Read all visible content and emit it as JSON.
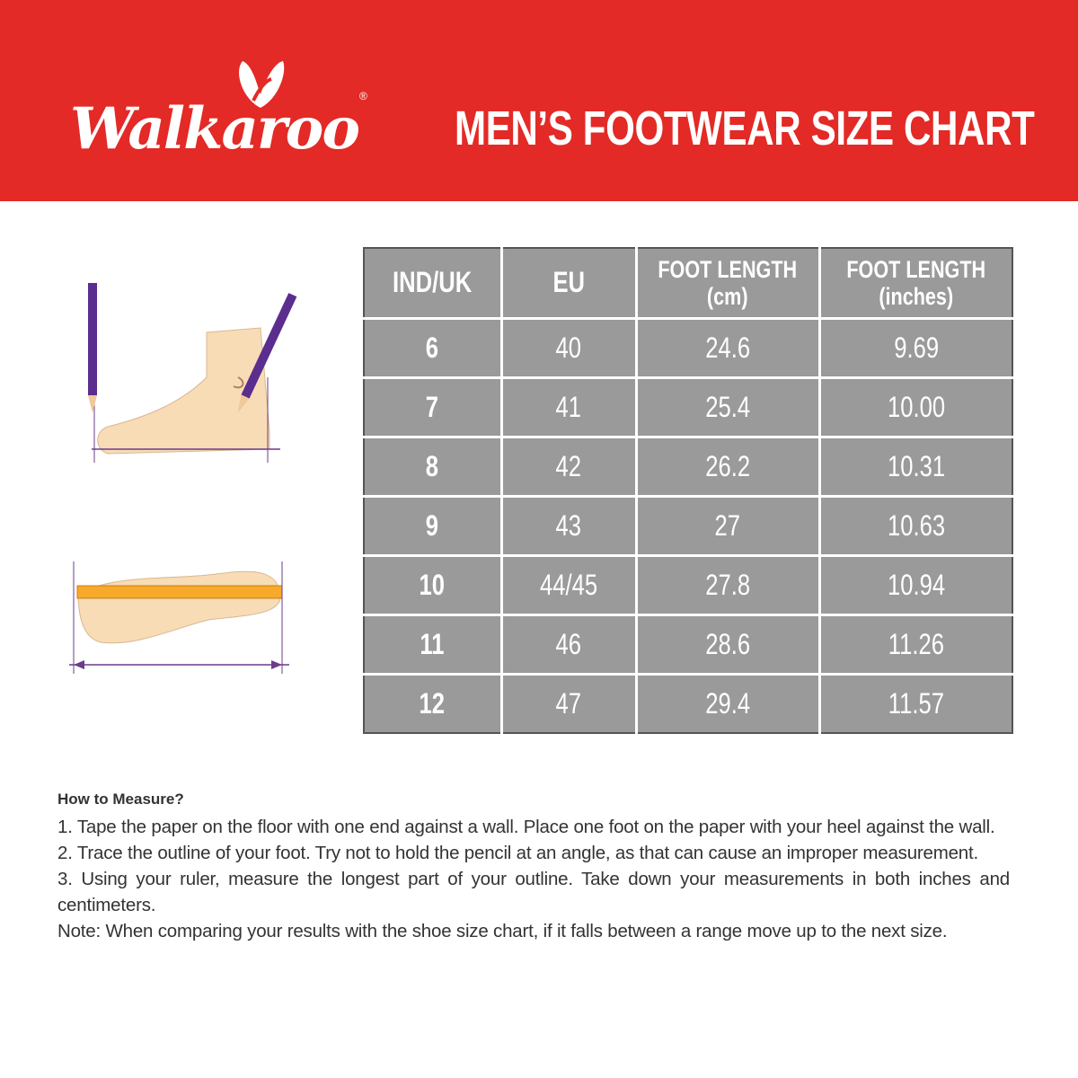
{
  "brand": {
    "logo_text": "Walkaroo",
    "registered": "®"
  },
  "header": {
    "title": "MEN’S FOOTWEAR SIZE CHART"
  },
  "colors": {
    "header_red": "#e32a26",
    "table_gray": "#9a9a9a"
  },
  "table": {
    "columns": [
      {
        "line1": "IND/UK",
        "line2": ""
      },
      {
        "line1": "EU",
        "line2": ""
      },
      {
        "line1": "FOOT LENGTH",
        "line2": "(cm)"
      },
      {
        "line1": "FOOT LENGTH",
        "line2": "(inches)"
      }
    ],
    "rows": [
      [
        "6",
        "40",
        "24.6",
        "9.69"
      ],
      [
        "7",
        "41",
        "25.4",
        "10.00"
      ],
      [
        "8",
        "42",
        "26.2",
        "10.31"
      ],
      [
        "9",
        "43",
        "27",
        "10.63"
      ],
      [
        "10",
        "44/45",
        "27.8",
        "10.94"
      ],
      [
        "11",
        "46",
        "28.6",
        "11.26"
      ],
      [
        "12",
        "47",
        "29.4",
        "11.57"
      ]
    ]
  },
  "instructions": {
    "heading": "How to Measure?",
    "steps": [
      "1. Tape the paper on the floor with one end against a wall. Place one foot on the paper with your heel against the wall.",
      "2. Trace the outline of your foot. Try not to hold the pencil at an angle, as that can cause an improper measurement.",
      "3. Using your ruler, measure the longest part of your outline. Take down your measurements in both inches and centimeters.",
      "Note: When comparing your results with the shoe size chart, if it falls between a range move up to the next size."
    ]
  }
}
